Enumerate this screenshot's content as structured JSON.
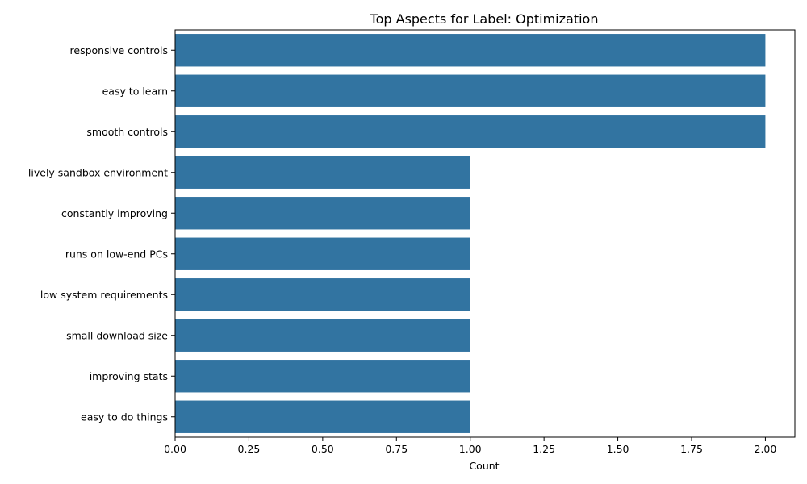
{
  "chart_data": {
    "type": "bar",
    "orientation": "horizontal",
    "title": "Top Aspects for Label: Optimization",
    "xlabel": "Count",
    "ylabel": "",
    "xlim": [
      0,
      2.1
    ],
    "x_ticks": [
      "0.00",
      "0.25",
      "0.50",
      "0.75",
      "1.00",
      "1.25",
      "1.50",
      "1.75",
      "2.00"
    ],
    "categories": [
      "responsive controls",
      "easy to learn",
      "smooth controls",
      "lively sandbox environment",
      "constantly improving",
      "runs on low-end PCs",
      "low system requirements",
      "small download size",
      "improving stats",
      "easy to do things"
    ],
    "values": [
      2,
      2,
      2,
      1,
      1,
      1,
      1,
      1,
      1,
      1
    ],
    "bar_color": "#3274a1",
    "grid": false
  }
}
